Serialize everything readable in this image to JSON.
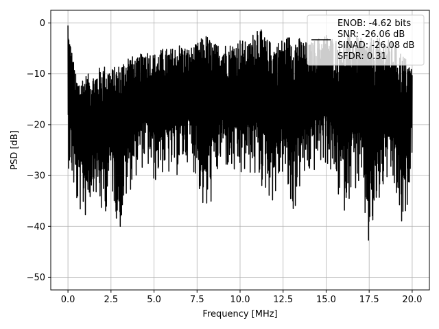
{
  "chart_data": {
    "type": "line",
    "xlabel": "Frequency [MHz]",
    "ylabel": "PSD [dB]",
    "xlim": [
      -1.0,
      21.0
    ],
    "ylim": [
      -52.5,
      2.5
    ],
    "x_ticks": [
      0.0,
      2.5,
      5.0,
      7.5,
      10.0,
      12.5,
      15.0,
      17.5,
      20.0
    ],
    "x_tick_labels": [
      "0.0",
      "2.5",
      "5.0",
      "7.5",
      "10.0",
      "12.5",
      "15.0",
      "17.5",
      "20.0"
    ],
    "y_ticks": [
      0,
      -10,
      -20,
      -30,
      -40,
      -50
    ],
    "y_tick_labels": [
      "0",
      "−10",
      "−20",
      "−30",
      "−40",
      "−50"
    ],
    "grid": true,
    "legend": {
      "placement": "top-right",
      "entries": [
        "ENOB: -4.62 bits",
        "SNR: -26.06 dB",
        "SINAD: -26.08 dB",
        "SFDR: 0.31"
      ]
    },
    "series": [
      {
        "color": "#000000",
        "x": [
          0.0,
          0.5,
          1.0,
          1.5,
          2.0,
          2.5,
          3.0,
          3.5,
          4.0,
          4.5,
          5.0,
          5.5,
          6.0,
          6.5,
          7.0,
          7.5,
          8.0,
          8.5,
          9.0,
          9.5,
          10.0,
          10.5,
          11.0,
          11.5,
          12.0,
          12.5,
          13.0,
          13.5,
          14.0,
          14.5,
          15.0,
          15.5,
          16.0,
          16.5,
          17.0,
          17.5,
          18.0,
          18.5,
          19.0,
          19.5,
          20.0
        ],
        "y_max": [
          -0.5,
          -11,
          -10,
          -10,
          -8,
          -9,
          -8,
          -6,
          -7,
          -5,
          -6,
          -5,
          -5,
          -4,
          -5,
          -4,
          -2,
          -4,
          -4,
          -4,
          -3,
          -4,
          0,
          -3,
          -4,
          -3,
          -2,
          -3,
          -4,
          -3,
          -2,
          -3,
          -3,
          -2,
          -3,
          -3,
          -3,
          -3,
          -4,
          -6,
          -9
        ],
        "y_min": [
          -28,
          -37,
          -39,
          -33,
          -40,
          -33,
          -42,
          -34,
          -30,
          -28,
          -32,
          -30,
          -31,
          -30,
          -27,
          -31,
          -41,
          -33,
          -28,
          -31,
          -32,
          -30,
          -32,
          -34,
          -36,
          -30,
          -40,
          -33,
          -31,
          -29,
          -28,
          -33,
          -38,
          -33,
          -34,
          -47,
          -38,
          -32,
          -35,
          -45,
          -25
        ]
      }
    ]
  }
}
